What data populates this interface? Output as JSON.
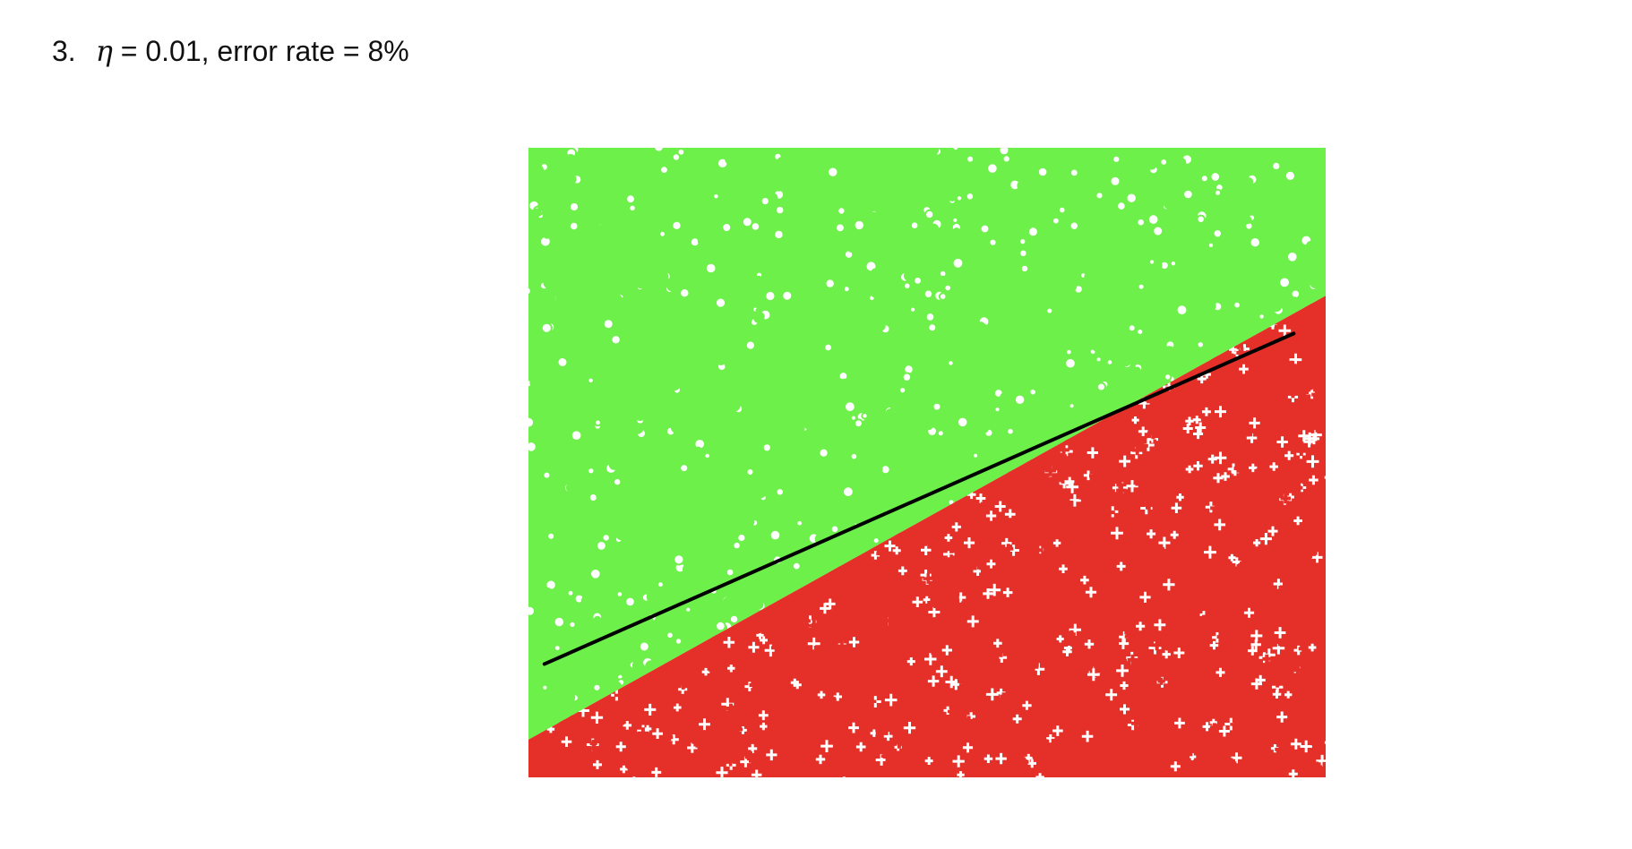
{
  "heading": {
    "number": "3.",
    "symbol": "η",
    "rest": " = 0.01, error rate = 8%"
  },
  "chart_data": {
    "type": "scatter",
    "title": "",
    "xlabel": "",
    "ylabel": "",
    "xlim": [
      -1,
      1
    ],
    "ylim": [
      -1,
      1
    ],
    "grid": false,
    "legend": "none",
    "true_boundary": {
      "x": [
        -1,
        1
      ],
      "y": [
        -0.88,
        0.53
      ]
    },
    "learned_line": {
      "x": [
        -0.96,
        0.92
      ],
      "y": [
        -0.64,
        0.41
      ],
      "color": "#000000"
    },
    "series": [
      {
        "marker": "circle",
        "color": "#6ef04a",
        "region": "above boundary"
      },
      {
        "marker": "plus",
        "color": "#e5302a",
        "region": "below boundary"
      }
    ]
  }
}
